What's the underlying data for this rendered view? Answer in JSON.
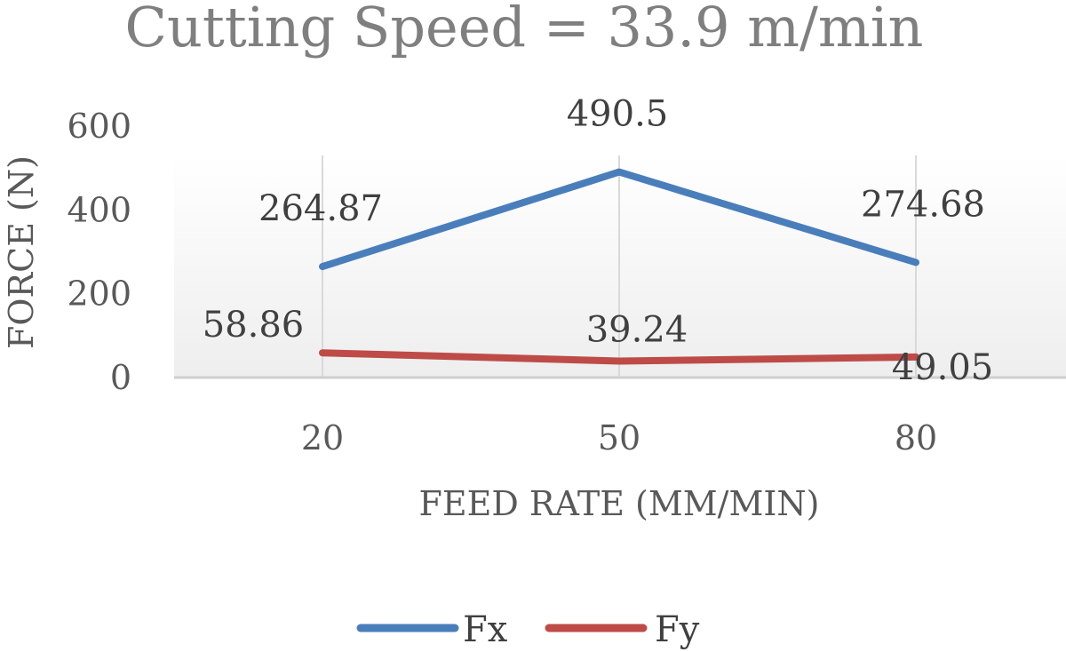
{
  "chart_data": {
    "type": "line",
    "title": "Cutting Speed = 33.9 m/min",
    "xlabel": "FEED RATE (MM/MIN)",
    "ylabel": "FORCE (N)",
    "categories": [
      "20",
      "50",
      "80"
    ],
    "ylim": [
      0,
      600
    ],
    "yticks": [
      "0",
      "200",
      "400",
      "600"
    ],
    "grid": "vertical",
    "legend_position": "bottom",
    "series": [
      {
        "name": "Fx",
        "color": "#4a7ebb",
        "values": [
          264.87,
          490.5,
          274.68
        ],
        "labels": [
          "264.87",
          "490.5",
          "274.68"
        ]
      },
      {
        "name": "Fy",
        "color": "#be4b48",
        "values": [
          58.86,
          39.24,
          49.05
        ],
        "labels": [
          "58.86",
          "39.24",
          "49.05"
        ]
      }
    ]
  }
}
